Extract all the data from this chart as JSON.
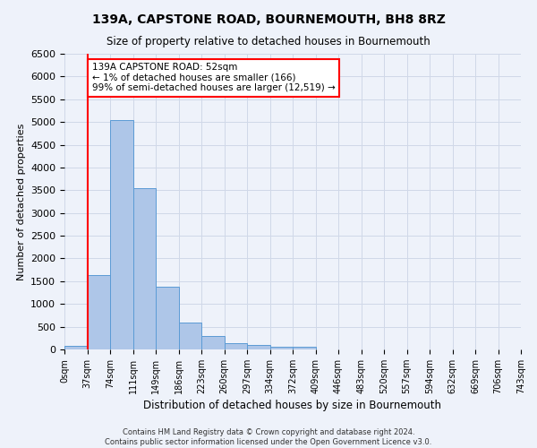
{
  "title": "139A, CAPSTONE ROAD, BOURNEMOUTH, BH8 8RZ",
  "subtitle": "Size of property relative to detached houses in Bournemouth",
  "xlabel": "Distribution of detached houses by size in Bournemouth",
  "ylabel": "Number of detached properties",
  "footer_line1": "Contains HM Land Registry data © Crown copyright and database right 2024.",
  "footer_line2": "Contains public sector information licensed under the Open Government Licence v3.0.",
  "bin_labels": [
    "0sqm",
    "37sqm",
    "74sqm",
    "111sqm",
    "149sqm",
    "186sqm",
    "223sqm",
    "260sqm",
    "297sqm",
    "334sqm",
    "372sqm",
    "409sqm",
    "446sqm",
    "483sqm",
    "520sqm",
    "557sqm",
    "594sqm",
    "632sqm",
    "669sqm",
    "706sqm",
    "743sqm"
  ],
  "bar_values": [
    75,
    1630,
    5050,
    3550,
    1380,
    590,
    290,
    145,
    100,
    65,
    65,
    0,
    0,
    0,
    0,
    0,
    0,
    0,
    0,
    0
  ],
  "bar_color": "#aec6e8",
  "bar_edge_color": "#5b9bd5",
  "grid_color": "#d0d8e8",
  "background_color": "#eef2fa",
  "vline_x": 1,
  "vline_color": "red",
  "annotation_text": "139A CAPSTONE ROAD: 52sqm\n← 1% of detached houses are smaller (166)\n99% of semi-detached houses are larger (12,519) →",
  "annotation_box_color": "white",
  "annotation_box_edge_color": "red",
  "ylim": [
    0,
    6500
  ],
  "yticks": [
    0,
    500,
    1000,
    1500,
    2000,
    2500,
    3000,
    3500,
    4000,
    4500,
    5000,
    5500,
    6000,
    6500
  ]
}
